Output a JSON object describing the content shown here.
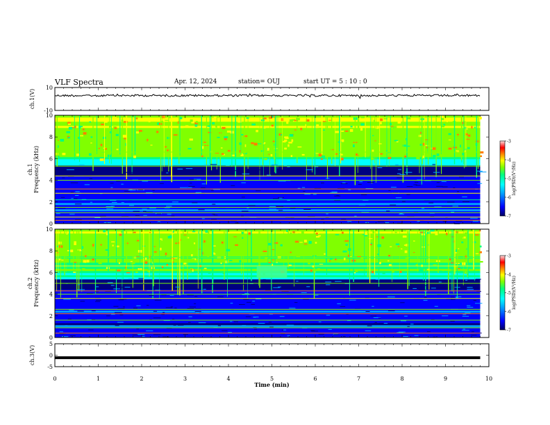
{
  "header": {
    "title": "VLF Spectra",
    "date": "Apr. 12, 2024",
    "station": "station= OUJ",
    "start": "start  UT =   5 : 10 : 0"
  },
  "chart_data": [
    {
      "type": "line",
      "name": "ch1_waveform",
      "ylabel": "ch.1(V)",
      "ylim": [
        -10,
        10
      ],
      "yticks": [
        "10",
        "-10"
      ],
      "x": [
        0,
        9.8
      ],
      "y": [
        3,
        3
      ]
    },
    {
      "type": "heatmap",
      "name": "ch1_spectrogram",
      "ylabel": "ch.1\nFrequency (kHz)",
      "ylim": [
        0,
        10
      ],
      "yticks": [
        "0",
        "2",
        "4",
        "6",
        "8",
        "10"
      ],
      "colorbar": {
        "label": "log(PSD)(V²/Hz)",
        "ticks": [
          "-3",
          "-4",
          "-5",
          "-6",
          "-7"
        ],
        "range": [
          -7,
          -3
        ]
      }
    },
    {
      "type": "heatmap",
      "name": "ch2_spectrogram",
      "ylabel": "ch.2\nFrequency (kHz)",
      "ylim": [
        0,
        10
      ],
      "yticks": [
        "0",
        "2",
        "4",
        "6",
        "8",
        "10"
      ],
      "colorbar": {
        "label": "log(PSD)(V²/Hz)",
        "ticks": [
          "-3",
          "-4",
          "-5",
          "-6",
          "-7"
        ],
        "range": [
          -7,
          -3
        ]
      }
    },
    {
      "type": "line",
      "name": "ch3_waveform",
      "ylabel": "ch.3(V)",
      "ylim": [
        -5,
        5
      ],
      "yticks": [
        "5",
        "0",
        "-5"
      ],
      "x": [
        0,
        9.8
      ],
      "y": [
        -1.1,
        -1.1
      ]
    }
  ],
  "xaxis": {
    "label": "Time (min)",
    "ticks": [
      "0",
      "1",
      "2",
      "3",
      "4",
      "5",
      "6",
      "7",
      "8",
      "9",
      "10"
    ],
    "xlim": [
      0,
      10
    ],
    "data_end": 9.8
  },
  "colors": {
    "colormap": [
      "#000080",
      "#0000ff",
      "#00a0ff",
      "#00ffff",
      "#00ff80",
      "#80ff00",
      "#ffff00",
      "#ff8000",
      "#ff0000",
      "#ffd0d0"
    ]
  }
}
